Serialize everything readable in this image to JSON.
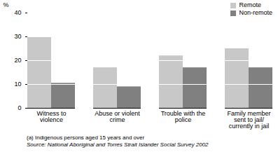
{
  "chart_data": {
    "type": "bar",
    "ylabel": "%",
    "categories": [
      "Witness to violence",
      "Abuse or violent crime",
      "Trouble with the police",
      "Family member sent to jail/ currently in jail"
    ],
    "series": [
      {
        "name": "Remote",
        "color": "#c8c8c8",
        "values": [
          30,
          17,
          22,
          25
        ]
      },
      {
        "name": "Non-remote",
        "color": "#808080",
        "values": [
          10.5,
          9,
          17,
          17
        ]
      }
    ],
    "ylim": [
      0,
      40
    ],
    "yticks": [
      0,
      10,
      20,
      30,
      40
    ],
    "grid": true,
    "legend": "upper right",
    "footnote": "(a) Indigenous persons aged 15 years and over",
    "source": "Source: National Aboriginal and Torres Strait Islander Social Survey 2002"
  }
}
